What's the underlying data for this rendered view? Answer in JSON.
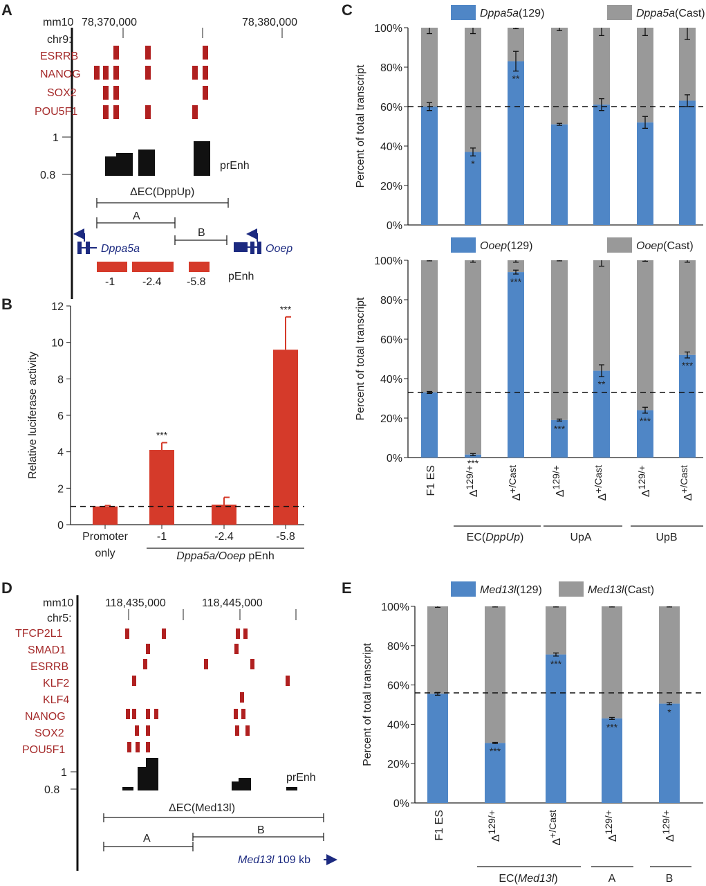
{
  "colors": {
    "red": "#d53a2a",
    "blue": "#4f86c6",
    "gray": "#999999",
    "dark_red": "#b02020",
    "black": "#111111",
    "navy": "#1c2a80"
  },
  "panelA": {
    "letter": "A",
    "assembly": "mm10",
    "chrom": "chr9:",
    "coord1": "78,370,000",
    "coord2": "78,380,000",
    "tfs": [
      "ESRRB",
      "NANOG",
      "SOX2",
      "POU5F1"
    ],
    "score_hi": "1",
    "score_lo": "0.8",
    "prenh": "prEnh",
    "ec_label": "ΔEC(DppUp)",
    "seg_a": "A",
    "seg_b": "B",
    "gene1": "Dppa5a",
    "gene2": "Ooep",
    "penh": "pEnh",
    "penh_labels": [
      "-1",
      "-2.4",
      "-5.8"
    ]
  },
  "chart_data": [
    {
      "panel": "B",
      "type": "bar",
      "ylabel": "Relative luciferase activity",
      "ylim": [
        0,
        12
      ],
      "yticks": [
        "0",
        "2",
        "4",
        "6",
        "8",
        "10",
        "12"
      ],
      "categories": [
        "Promoter only",
        "-1",
        "-2.4",
        "-5.8"
      ],
      "values": [
        1.0,
        4.1,
        1.1,
        9.6
      ],
      "errors": [
        0.05,
        0.4,
        0.4,
        1.8
      ],
      "significance": [
        "",
        "***",
        "",
        "***"
      ],
      "reference_line": 1.0,
      "group_label_a": "Dppa5a/Ooep",
      "group_label_b": " pEnh"
    },
    {
      "panel": "C-top",
      "type": "bar",
      "stacked": true,
      "ylabel": "Percent of total transcript",
      "yticks": [
        "0%",
        "20%",
        "40%",
        "60%",
        "80%",
        "100%"
      ],
      "legend": [
        "Dppa5a(129)",
        "Dppa5a(Cast)"
      ],
      "values_129": [
        60,
        37,
        83,
        51,
        61,
        52,
        63
      ],
      "err_129": [
        2,
        2,
        5,
        0.5,
        3,
        3,
        3
      ],
      "err_cast": [
        3,
        3,
        0.5,
        1.5,
        4,
        4,
        6
      ],
      "significance": [
        "",
        "*",
        "**",
        "",
        "",
        "",
        ""
      ],
      "reference_line": 60
    },
    {
      "panel": "C-bottom",
      "type": "bar",
      "stacked": true,
      "ylabel": "Percent of total transcript",
      "yticks": [
        "0%",
        "20%",
        "40%",
        "60%",
        "80%",
        "100%"
      ],
      "legend": [
        "Ooep(129)",
        "Ooep(Cast)"
      ],
      "categories": [
        "F1 ES",
        "Δ129/+",
        "Δ+/Cast",
        "Δ129/+",
        "Δ+/Cast",
        "Δ129/+",
        "Δ+/Cast"
      ],
      "values_129": [
        33,
        1.5,
        94,
        19,
        44,
        24,
        52
      ],
      "err_129": [
        0.5,
        0.5,
        1,
        0.5,
        3,
        1.5,
        1.5
      ],
      "err_cast": [
        0.3,
        1,
        1,
        0.3,
        3,
        0.5,
        1
      ],
      "significance": [
        "",
        "***",
        "***",
        "***",
        "**",
        "***",
        "***"
      ],
      "reference_line": 33,
      "groups": [
        "EC(DppUp)",
        "UpA",
        "UpB"
      ]
    },
    {
      "panel": "E",
      "type": "bar",
      "stacked": true,
      "ylabel": "Percent of total transcript",
      "yticks": [
        "0%",
        "20%",
        "40%",
        "60%",
        "80%",
        "100%"
      ],
      "legend": [
        "Med13l(129)",
        "Med13l(Cast)"
      ],
      "categories": [
        "F1 ES",
        "Δ129/+",
        "Δ+/Cast",
        "Δ129/+",
        "Δ129/+"
      ],
      "values_129": [
        55.5,
        30.5,
        75.5,
        43,
        50.5
      ],
      "err_129": [
        0.7,
        0.3,
        0.8,
        0.5,
        0.5
      ],
      "err_cast": [
        0.5,
        0.3,
        0.3,
        0.3,
        0.3
      ],
      "significance": [
        "",
        "***",
        "***",
        "***",
        "*"
      ],
      "reference_line": 56,
      "groups": [
        "EC(Med13l)",
        "A",
        "B"
      ]
    }
  ],
  "panelB": {
    "letter": "B"
  },
  "panelC": {
    "letter": "C"
  },
  "panelD": {
    "letter": "D",
    "assembly": "mm10",
    "chrom": "chr5:",
    "coord1": "118,435,000",
    "coord2": "118,445,000",
    "tfs": [
      "TFCP2L1",
      "SMAD1",
      "ESRRB",
      "KLF2",
      "KLF4",
      "NANOG",
      "SOX2",
      "POU5F1"
    ],
    "score_hi": "1",
    "score_lo": "0.8",
    "prenh": "prEnh",
    "ec_label": "ΔEC(Med13l)",
    "seg_a": "A",
    "seg_b": "B",
    "gene": "Med13l",
    "gene_size": " 109 kb"
  },
  "panelE": {
    "letter": "E"
  }
}
